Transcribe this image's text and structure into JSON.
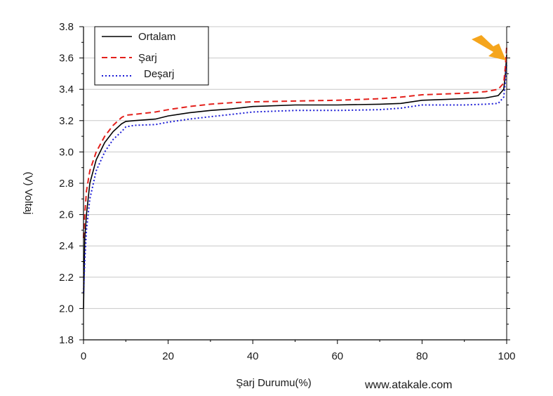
{
  "chart_data": {
    "type": "line",
    "title": "",
    "xlabel": "Şarj Durumu(%)",
    "ylabel": "(V) Voltaj",
    "xlim": [
      0,
      100
    ],
    "ylim": [
      1.8,
      3.8
    ],
    "x_ticks": [
      "0",
      "20",
      "40",
      "60",
      "80",
      "100"
    ],
    "y_ticks": [
      "1.8",
      "2.0",
      "2.2",
      "2.4",
      "2.6",
      "2.8",
      "3.0",
      "3.2",
      "3.4",
      "3.6",
      "3.8"
    ],
    "grid": "horizontal",
    "legend_position": "top-left",
    "series": [
      {
        "name": "Ortalam",
        "color": "#000000",
        "dash": "solid",
        "points": [
          [
            0,
            2.0
          ],
          [
            0.3,
            2.45
          ],
          [
            0.7,
            2.6
          ],
          [
            1.5,
            2.8
          ],
          [
            3,
            2.95
          ],
          [
            5,
            3.06
          ],
          [
            7,
            3.13
          ],
          [
            9,
            3.18
          ],
          [
            10,
            3.195
          ],
          [
            12,
            3.2
          ],
          [
            17,
            3.21
          ],
          [
            20,
            3.23
          ],
          [
            25,
            3.25
          ],
          [
            30,
            3.265
          ],
          [
            35,
            3.275
          ],
          [
            40,
            3.29
          ],
          [
            50,
            3.3
          ],
          [
            60,
            3.3
          ],
          [
            70,
            3.305
          ],
          [
            75,
            3.31
          ],
          [
            80,
            3.33
          ],
          [
            85,
            3.335
          ],
          [
            90,
            3.34
          ],
          [
            95,
            3.345
          ],
          [
            98,
            3.36
          ],
          [
            99.3,
            3.4
          ],
          [
            99.7,
            3.5
          ],
          [
            100,
            3.62
          ]
        ]
      },
      {
        "name": "Şarj",
        "color": "#e3201b",
        "dash": "dashed",
        "points": [
          [
            0,
            2.45
          ],
          [
            0.3,
            2.6
          ],
          [
            0.7,
            2.75
          ],
          [
            1.5,
            2.88
          ],
          [
            3,
            3.0
          ],
          [
            5,
            3.1
          ],
          [
            7,
            3.17
          ],
          [
            9,
            3.22
          ],
          [
            10,
            3.235
          ],
          [
            12,
            3.24
          ],
          [
            17,
            3.255
          ],
          [
            20,
            3.27
          ],
          [
            25,
            3.29
          ],
          [
            30,
            3.305
          ],
          [
            35,
            3.315
          ],
          [
            40,
            3.32
          ],
          [
            50,
            3.325
          ],
          [
            60,
            3.33
          ],
          [
            70,
            3.34
          ],
          [
            75,
            3.35
          ],
          [
            80,
            3.365
          ],
          [
            85,
            3.37
          ],
          [
            90,
            3.375
          ],
          [
            95,
            3.385
          ],
          [
            98,
            3.4
          ],
          [
            99.3,
            3.44
          ],
          [
            99.7,
            3.55
          ],
          [
            100,
            3.67
          ]
        ]
      },
      {
        "name": "Deşarj",
        "color": "#1b1bd6",
        "dash": "dotted",
        "points": [
          [
            0,
            2.1
          ],
          [
            0.3,
            2.3
          ],
          [
            0.7,
            2.5
          ],
          [
            1.5,
            2.7
          ],
          [
            3,
            2.88
          ],
          [
            5,
            3.0
          ],
          [
            7,
            3.08
          ],
          [
            9,
            3.13
          ],
          [
            10,
            3.16
          ],
          [
            12,
            3.17
          ],
          [
            17,
            3.175
          ],
          [
            20,
            3.19
          ],
          [
            25,
            3.21
          ],
          [
            30,
            3.225
          ],
          [
            35,
            3.24
          ],
          [
            40,
            3.255
          ],
          [
            50,
            3.265
          ],
          [
            60,
            3.265
          ],
          [
            70,
            3.27
          ],
          [
            75,
            3.28
          ],
          [
            80,
            3.3
          ],
          [
            85,
            3.3
          ],
          [
            90,
            3.3
          ],
          [
            95,
            3.305
          ],
          [
            98,
            3.31
          ],
          [
            99.3,
            3.35
          ],
          [
            99.7,
            3.45
          ],
          [
            100,
            3.57
          ]
        ]
      }
    ]
  },
  "watermark": "www.atakale.com",
  "annotation_arrow_color": "#f5a51c"
}
